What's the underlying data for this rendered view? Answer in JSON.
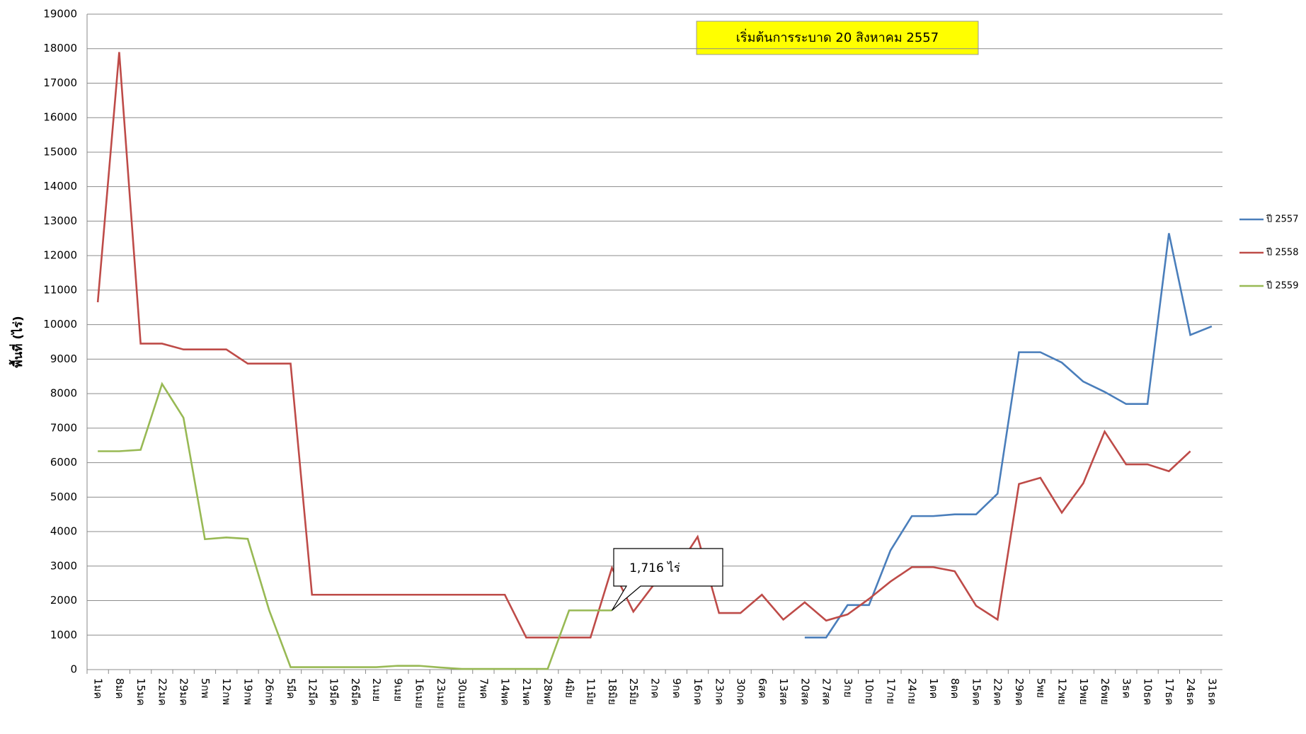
{
  "chart_data": {
    "type": "line",
    "title": "เริ่มต้นการระบาด 20 สิงหาคม 2557",
    "y_label": "พื้นที่ (ไร่)",
    "annotations": [
      {
        "text": "1,716 ไร่",
        "series": 2,
        "index": 24
      }
    ],
    "categories": [
      "1มค",
      "8มค",
      "15มค",
      "22มค",
      "29มค",
      "5กพ",
      "12กพ",
      "19กพ",
      "26กพ",
      "5มีค",
      "12มีค",
      "19มีค",
      "26มีค",
      "2เมย",
      "9เมย",
      "16เมย",
      "23เมย",
      "30เมย",
      "7พค",
      "14พค",
      "21พค",
      "28พค",
      "4มิย",
      "11มิย",
      "18มิย",
      "25มิย",
      "2กค",
      "9กค",
      "16กค",
      "23กค",
      "30กค",
      "6สค",
      "13สค",
      "20สค",
      "27สค",
      "3กย",
      "10กย",
      "17กย",
      "24กย",
      "1ตค",
      "8ตค",
      "15ตค",
      "22ตค",
      "29ตค",
      "5พย",
      "12พย",
      "19พย",
      "26พย",
      "3ธค",
      "10ธค",
      "17ธค",
      "24ธค",
      "31ธค"
    ],
    "series": [
      {
        "name": "ปี 2557",
        "color": "#4a7ebb",
        "values": [
          null,
          null,
          null,
          null,
          null,
          null,
          null,
          null,
          null,
          null,
          null,
          null,
          null,
          null,
          null,
          null,
          null,
          null,
          null,
          null,
          null,
          null,
          null,
          null,
          null,
          null,
          null,
          null,
          null,
          null,
          null,
          null,
          null,
          930,
          930,
          1870,
          1870,
          3450,
          4450,
          4450,
          4500,
          4500,
          5100,
          9200,
          9200,
          8900,
          8350,
          8050,
          7700,
          7700,
          12650,
          9700,
          9950
        ]
      },
      {
        "name": "ปี 2558",
        "color": "#be4b48",
        "values": [
          10650,
          17900,
          9450,
          9450,
          9280,
          9280,
          9280,
          8870,
          8870,
          8870,
          2170,
          2170,
          2170,
          2170,
          2170,
          2170,
          2170,
          2170,
          2170,
          2170,
          930,
          930,
          930,
          930,
          2950,
          1680,
          2500,
          2900,
          3850,
          1640,
          1640,
          2170,
          1450,
          1950,
          1420,
          1600,
          2050,
          2550,
          2970,
          2970,
          2850,
          1850,
          1450,
          5380,
          5560,
          4550,
          5400,
          6900,
          5950,
          5950,
          5750,
          6330,
          null
        ]
      },
      {
        "name": "ปี 2559",
        "color": "#98b954",
        "values": [
          6330,
          6330,
          6370,
          8280,
          7300,
          3780,
          3830,
          3790,
          1720,
          70,
          70,
          70,
          70,
          70,
          110,
          110,
          60,
          20,
          20,
          20,
          20,
          20,
          1716,
          1716,
          1716,
          null,
          null,
          null,
          null,
          null,
          null,
          null,
          null,
          null,
          null,
          null,
          null,
          null,
          null,
          null,
          null,
          null,
          null,
          null,
          null,
          null,
          null,
          null,
          null,
          null,
          null,
          null,
          null
        ]
      }
    ],
    "ylim": [
      0,
      19000
    ],
    "yticks": [
      0,
      1000,
      2000,
      3000,
      4000,
      5000,
      6000,
      7000,
      8000,
      9000,
      10000,
      11000,
      12000,
      13000,
      14000,
      15000,
      16000,
      17000,
      18000,
      19000
    ],
    "grid": true,
    "legend": "right"
  }
}
